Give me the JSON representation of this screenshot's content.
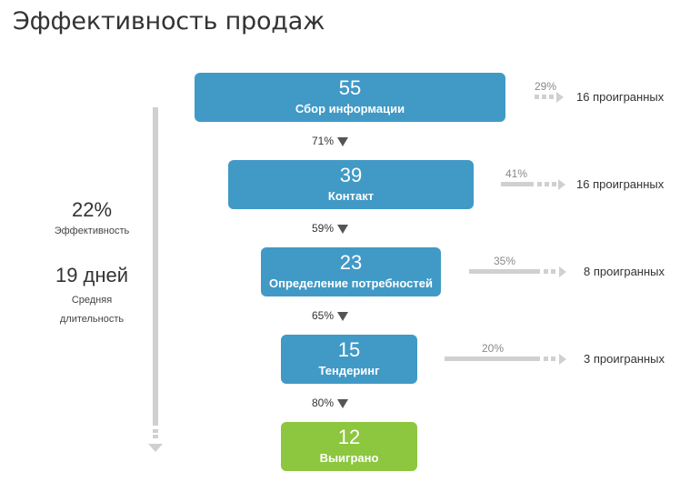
{
  "title": "Эффективность продаж",
  "summary": {
    "efficiency_value": "22%",
    "efficiency_label": "Эффективность",
    "duration_value": "19 дней",
    "duration_label_line1": "Средняя",
    "duration_label_line2": "длительность"
  },
  "stages": [
    {
      "count": "55",
      "label": "Сбор информации"
    },
    {
      "count": "39",
      "label": "Контакт"
    },
    {
      "count": "23",
      "label": "Определение потребностей"
    },
    {
      "count": "15",
      "label": "Тендеринг"
    },
    {
      "count": "12",
      "label": "Выиграно"
    }
  ],
  "conversions": [
    "71%",
    "59%",
    "65%",
    "80%"
  ],
  "losses": [
    {
      "percent": "29%",
      "count": "16 проигранных"
    },
    {
      "percent": "41%",
      "count": "16 проигранных"
    },
    {
      "percent": "35%",
      "count": "8 проигранных"
    },
    {
      "percent": "20%",
      "count": "3 проигранных"
    }
  ],
  "colors": {
    "stage": "#4199c6",
    "won": "#8dc63f",
    "arrow": "#d0d0d0"
  }
}
